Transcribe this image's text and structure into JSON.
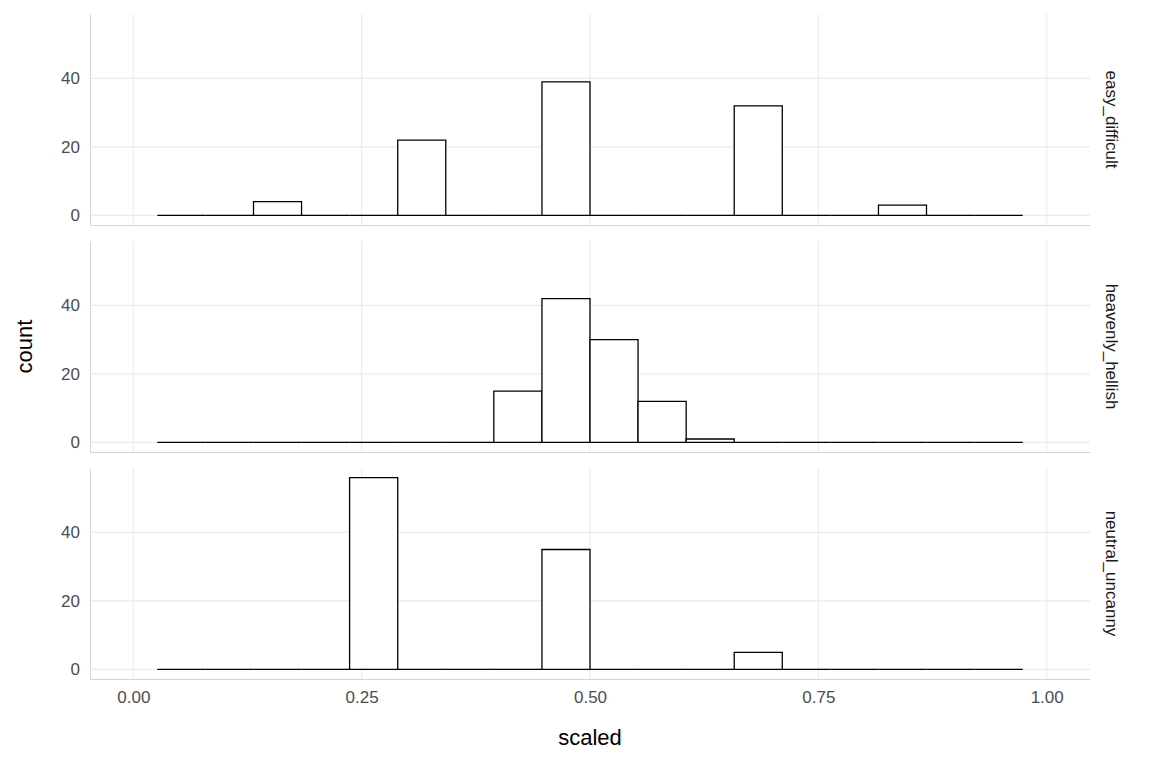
{
  "chart_data": {
    "type": "histogram",
    "xlabel": "scaled",
    "ylabel": "count",
    "bins": [
      0.0263,
      0.0789,
      0.1316,
      0.1842,
      0.2368,
      0.2895,
      0.3421,
      0.3947,
      0.4474,
      0.5,
      0.5526,
      0.6053,
      0.6579,
      0.7105,
      0.7632,
      0.8158,
      0.8684,
      0.9211,
      0.9737
    ],
    "series": [
      {
        "name": "easy_difficult",
        "values": [
          0,
          0,
          4,
          0,
          0,
          22,
          0,
          0,
          39,
          0,
          0,
          0,
          32,
          0,
          0,
          3,
          0,
          0
        ]
      },
      {
        "name": "heavenly_hellish",
        "values": [
          0,
          0,
          0,
          0,
          0,
          0,
          0,
          15,
          42,
          30,
          12,
          1,
          0,
          0,
          0,
          0,
          0,
          0
        ]
      },
      {
        "name": "neutral_uncanny",
        "values": [
          0,
          0,
          0,
          0,
          56,
          0,
          0,
          0,
          35,
          0,
          0,
          0,
          5,
          0,
          0,
          0,
          0,
          0
        ]
      }
    ],
    "color": "#000000",
    "xlim": [
      -0.0474,
      1.0474
    ],
    "xticks": [
      {
        "value": 0,
        "label": "0.00"
      },
      {
        "value": 0.25,
        "label": "0.25"
      },
      {
        "value": 0.5,
        "label": "0.50"
      },
      {
        "value": 0.75,
        "label": "0.75"
      },
      {
        "value": 1,
        "label": "1.00"
      }
    ],
    "ylim": [
      -2.8,
      58.8
    ],
    "yticks": [
      0,
      20,
      40
    ],
    "grid": true
  }
}
